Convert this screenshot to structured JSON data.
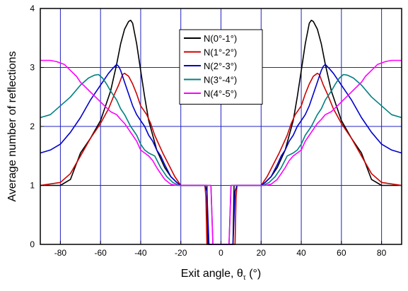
{
  "chart_data": {
    "type": "line",
    "xlabel": "Exit angle, θ",
    "xlabel_sub": "τ",
    "xlabel_unit": " (°)",
    "ylabel": "Average number of reflections",
    "xlim": [
      -90,
      90
    ],
    "ylim": [
      0,
      4
    ],
    "x_ticks": [
      -80,
      -60,
      -40,
      -20,
      0,
      20,
      40,
      60,
      80
    ],
    "y_ticks": [
      0,
      1,
      2,
      3,
      4
    ],
    "grid": true,
    "legend_position": "top-center",
    "colors": {
      "grid": "#2020c0",
      "axes": "#000000"
    },
    "series": [
      {
        "name": "N(0°-1°)",
        "color": "#000000",
        "x": [
          -90,
          -80,
          -75,
          -70,
          -65,
          -60,
          -55,
          -52,
          -50,
          -48,
          -46,
          -45,
          -44,
          -42,
          -40,
          -38,
          -36,
          -34,
          -32,
          -30,
          -28,
          -25,
          -22,
          -20,
          -10,
          -7,
          -6.5,
          -6,
          -5,
          -4,
          -3,
          -2,
          -1,
          0,
          1,
          2,
          3,
          4,
          5,
          6,
          6.5,
          7,
          10,
          20,
          22,
          25,
          28,
          30,
          32,
          34,
          36,
          38,
          40,
          42,
          44,
          45,
          46,
          48,
          50,
          52,
          55,
          60,
          65,
          70,
          75,
          80,
          90
        ],
        "values": [
          1,
          1,
          1.1,
          1.55,
          1.8,
          2.1,
          2.6,
          3.05,
          3.4,
          3.65,
          3.78,
          3.8,
          3.75,
          3.4,
          2.95,
          2.5,
          2.1,
          1.85,
          1.6,
          1.45,
          1.3,
          1.15,
          1.05,
          1,
          1,
          1,
          0,
          0,
          0,
          0,
          0,
          0,
          0,
          0,
          0,
          0,
          0,
          0,
          0,
          0,
          1,
          1,
          1,
          1,
          1.05,
          1.15,
          1.3,
          1.45,
          1.6,
          1.85,
          2.1,
          2.5,
          2.95,
          3.4,
          3.75,
          3.8,
          3.78,
          3.65,
          3.4,
          3.05,
          2.6,
          2.1,
          1.8,
          1.55,
          1.1,
          1,
          1
        ]
      },
      {
        "name": "N(1°-2°)",
        "color": "#cc0000",
        "x": [
          -90,
          -80,
          -75,
          -70,
          -65,
          -60,
          -56,
          -53,
          -51,
          -49,
          -48,
          -46,
          -44,
          -42,
          -40,
          -37,
          -35,
          -33,
          -31,
          -29,
          -26,
          -23,
          -20,
          -8,
          -7.5,
          -7,
          -6,
          -4,
          -2,
          0,
          2,
          4,
          6,
          7,
          7.5,
          8,
          20,
          23,
          26,
          29,
          31,
          33,
          35,
          37,
          40,
          42,
          44,
          46,
          48,
          49,
          51,
          53,
          56,
          60,
          65,
          70,
          75,
          80,
          90
        ],
        "values": [
          1,
          1.05,
          1.2,
          1.5,
          1.8,
          2.05,
          2.3,
          2.55,
          2.7,
          2.88,
          2.9,
          2.85,
          2.72,
          2.55,
          2.35,
          2.2,
          2.05,
          1.85,
          1.7,
          1.55,
          1.35,
          1.15,
          1,
          1,
          0.8,
          0,
          0,
          0,
          0,
          0,
          0,
          0,
          0,
          0,
          0.8,
          1,
          1,
          1.15,
          1.35,
          1.55,
          1.7,
          1.85,
          2.05,
          2.2,
          2.35,
          2.55,
          2.72,
          2.85,
          2.9,
          2.88,
          2.7,
          2.55,
          2.3,
          2.05,
          1.8,
          1.5,
          1.2,
          1.05,
          1
        ]
      },
      {
        "name": "N(2°-3°)",
        "color": "#0000cc",
        "x": [
          -90,
          -85,
          -80,
          -75,
          -70,
          -65,
          -60,
          -56,
          -54,
          -52,
          -51,
          -50,
          -48,
          -46,
          -44,
          -42,
          -40,
          -38,
          -36,
          -34,
          -32,
          -30,
          -28,
          -25,
          -22,
          -20,
          -8,
          -7,
          -6,
          -4,
          -2,
          0,
          2,
          4,
          6,
          7,
          8,
          20,
          22,
          25,
          28,
          30,
          32,
          34,
          36,
          38,
          40,
          42,
          44,
          46,
          48,
          50,
          51,
          52,
          54,
          56,
          60,
          65,
          70,
          75,
          80,
          85,
          90
        ],
        "values": [
          1.55,
          1.6,
          1.7,
          1.9,
          2.15,
          2.45,
          2.7,
          2.9,
          2.98,
          3.05,
          3.02,
          2.95,
          2.75,
          2.55,
          2.35,
          2.2,
          2.1,
          2.0,
          1.85,
          1.75,
          1.6,
          1.5,
          1.35,
          1.15,
          1.05,
          1,
          1,
          0.9,
          0,
          0,
          0,
          0,
          0,
          0,
          0,
          0.9,
          1,
          1,
          1.05,
          1.15,
          1.35,
          1.5,
          1.6,
          1.75,
          1.85,
          2.0,
          2.1,
          2.2,
          2.35,
          2.55,
          2.75,
          2.95,
          3.02,
          3.05,
          2.98,
          2.9,
          2.7,
          2.45,
          2.15,
          1.9,
          1.7,
          1.6,
          1.55
        ]
      },
      {
        "name": "N(3°-4°)",
        "color": "#008080",
        "x": [
          -90,
          -85,
          -80,
          -75,
          -70,
          -66,
          -63,
          -61,
          -59,
          -57,
          -55,
          -52,
          -50,
          -48,
          -45,
          -42,
          -40,
          -38,
          -36,
          -33,
          -30,
          -27,
          -24,
          -21,
          -19,
          -5,
          -4,
          -3,
          -2,
          -1,
          0,
          1,
          2,
          3,
          4,
          5,
          19,
          21,
          24,
          27,
          30,
          33,
          36,
          38,
          40,
          42,
          45,
          48,
          50,
          52,
          55,
          57,
          59,
          61,
          63,
          66,
          70,
          75,
          80,
          85,
          90
        ],
        "values": [
          2.15,
          2.2,
          2.35,
          2.5,
          2.7,
          2.82,
          2.87,
          2.88,
          2.82,
          2.72,
          2.6,
          2.45,
          2.3,
          2.2,
          2.0,
          1.85,
          1.7,
          1.6,
          1.55,
          1.5,
          1.3,
          1.15,
          1.05,
          1,
          1,
          1,
          0,
          0,
          0,
          0,
          0,
          0,
          0,
          0,
          0,
          1,
          1,
          1,
          1.05,
          1.15,
          1.3,
          1.5,
          1.55,
          1.6,
          1.7,
          1.85,
          2.0,
          2.2,
          2.3,
          2.45,
          2.6,
          2.72,
          2.82,
          2.88,
          2.87,
          2.82,
          2.7,
          2.5,
          2.35,
          2.2,
          2.15
        ]
      },
      {
        "name": "N(4°-5°)",
        "color": "#ff00ff",
        "x": [
          -90,
          -85,
          -82,
          -78,
          -75,
          -72,
          -70,
          -67,
          -64,
          -61,
          -58,
          -55,
          -52,
          -50,
          -48,
          -46,
          -44,
          -42,
          -40,
          -38,
          -36,
          -34,
          -32,
          -30,
          -28,
          -25,
          -22,
          -19,
          -5,
          -4,
          -3,
          -2,
          -1,
          0,
          1,
          2,
          3,
          4,
          5,
          19,
          22,
          25,
          28,
          30,
          32,
          34,
          36,
          38,
          40,
          42,
          44,
          46,
          48,
          50,
          52,
          55,
          58,
          61,
          64,
          67,
          70,
          72,
          75,
          78,
          82,
          85,
          90
        ],
        "values": [
          3.12,
          3.12,
          3.1,
          3.05,
          2.95,
          2.85,
          2.75,
          2.65,
          2.55,
          2.45,
          2.35,
          2.25,
          2.2,
          2.12,
          2.05,
          1.95,
          1.85,
          1.75,
          1.6,
          1.55,
          1.5,
          1.42,
          1.3,
          1.2,
          1.1,
          1.02,
          1,
          1,
          1,
          0,
          0,
          0,
          0,
          0,
          0,
          0,
          0,
          0,
          1,
          1,
          1,
          1.02,
          1.1,
          1.2,
          1.3,
          1.42,
          1.5,
          1.55,
          1.6,
          1.75,
          1.85,
          1.95,
          2.05,
          2.12,
          2.2,
          2.25,
          2.35,
          2.45,
          2.55,
          2.65,
          2.75,
          2.85,
          2.95,
          3.05,
          3.1,
          3.12,
          3.12
        ]
      }
    ]
  }
}
